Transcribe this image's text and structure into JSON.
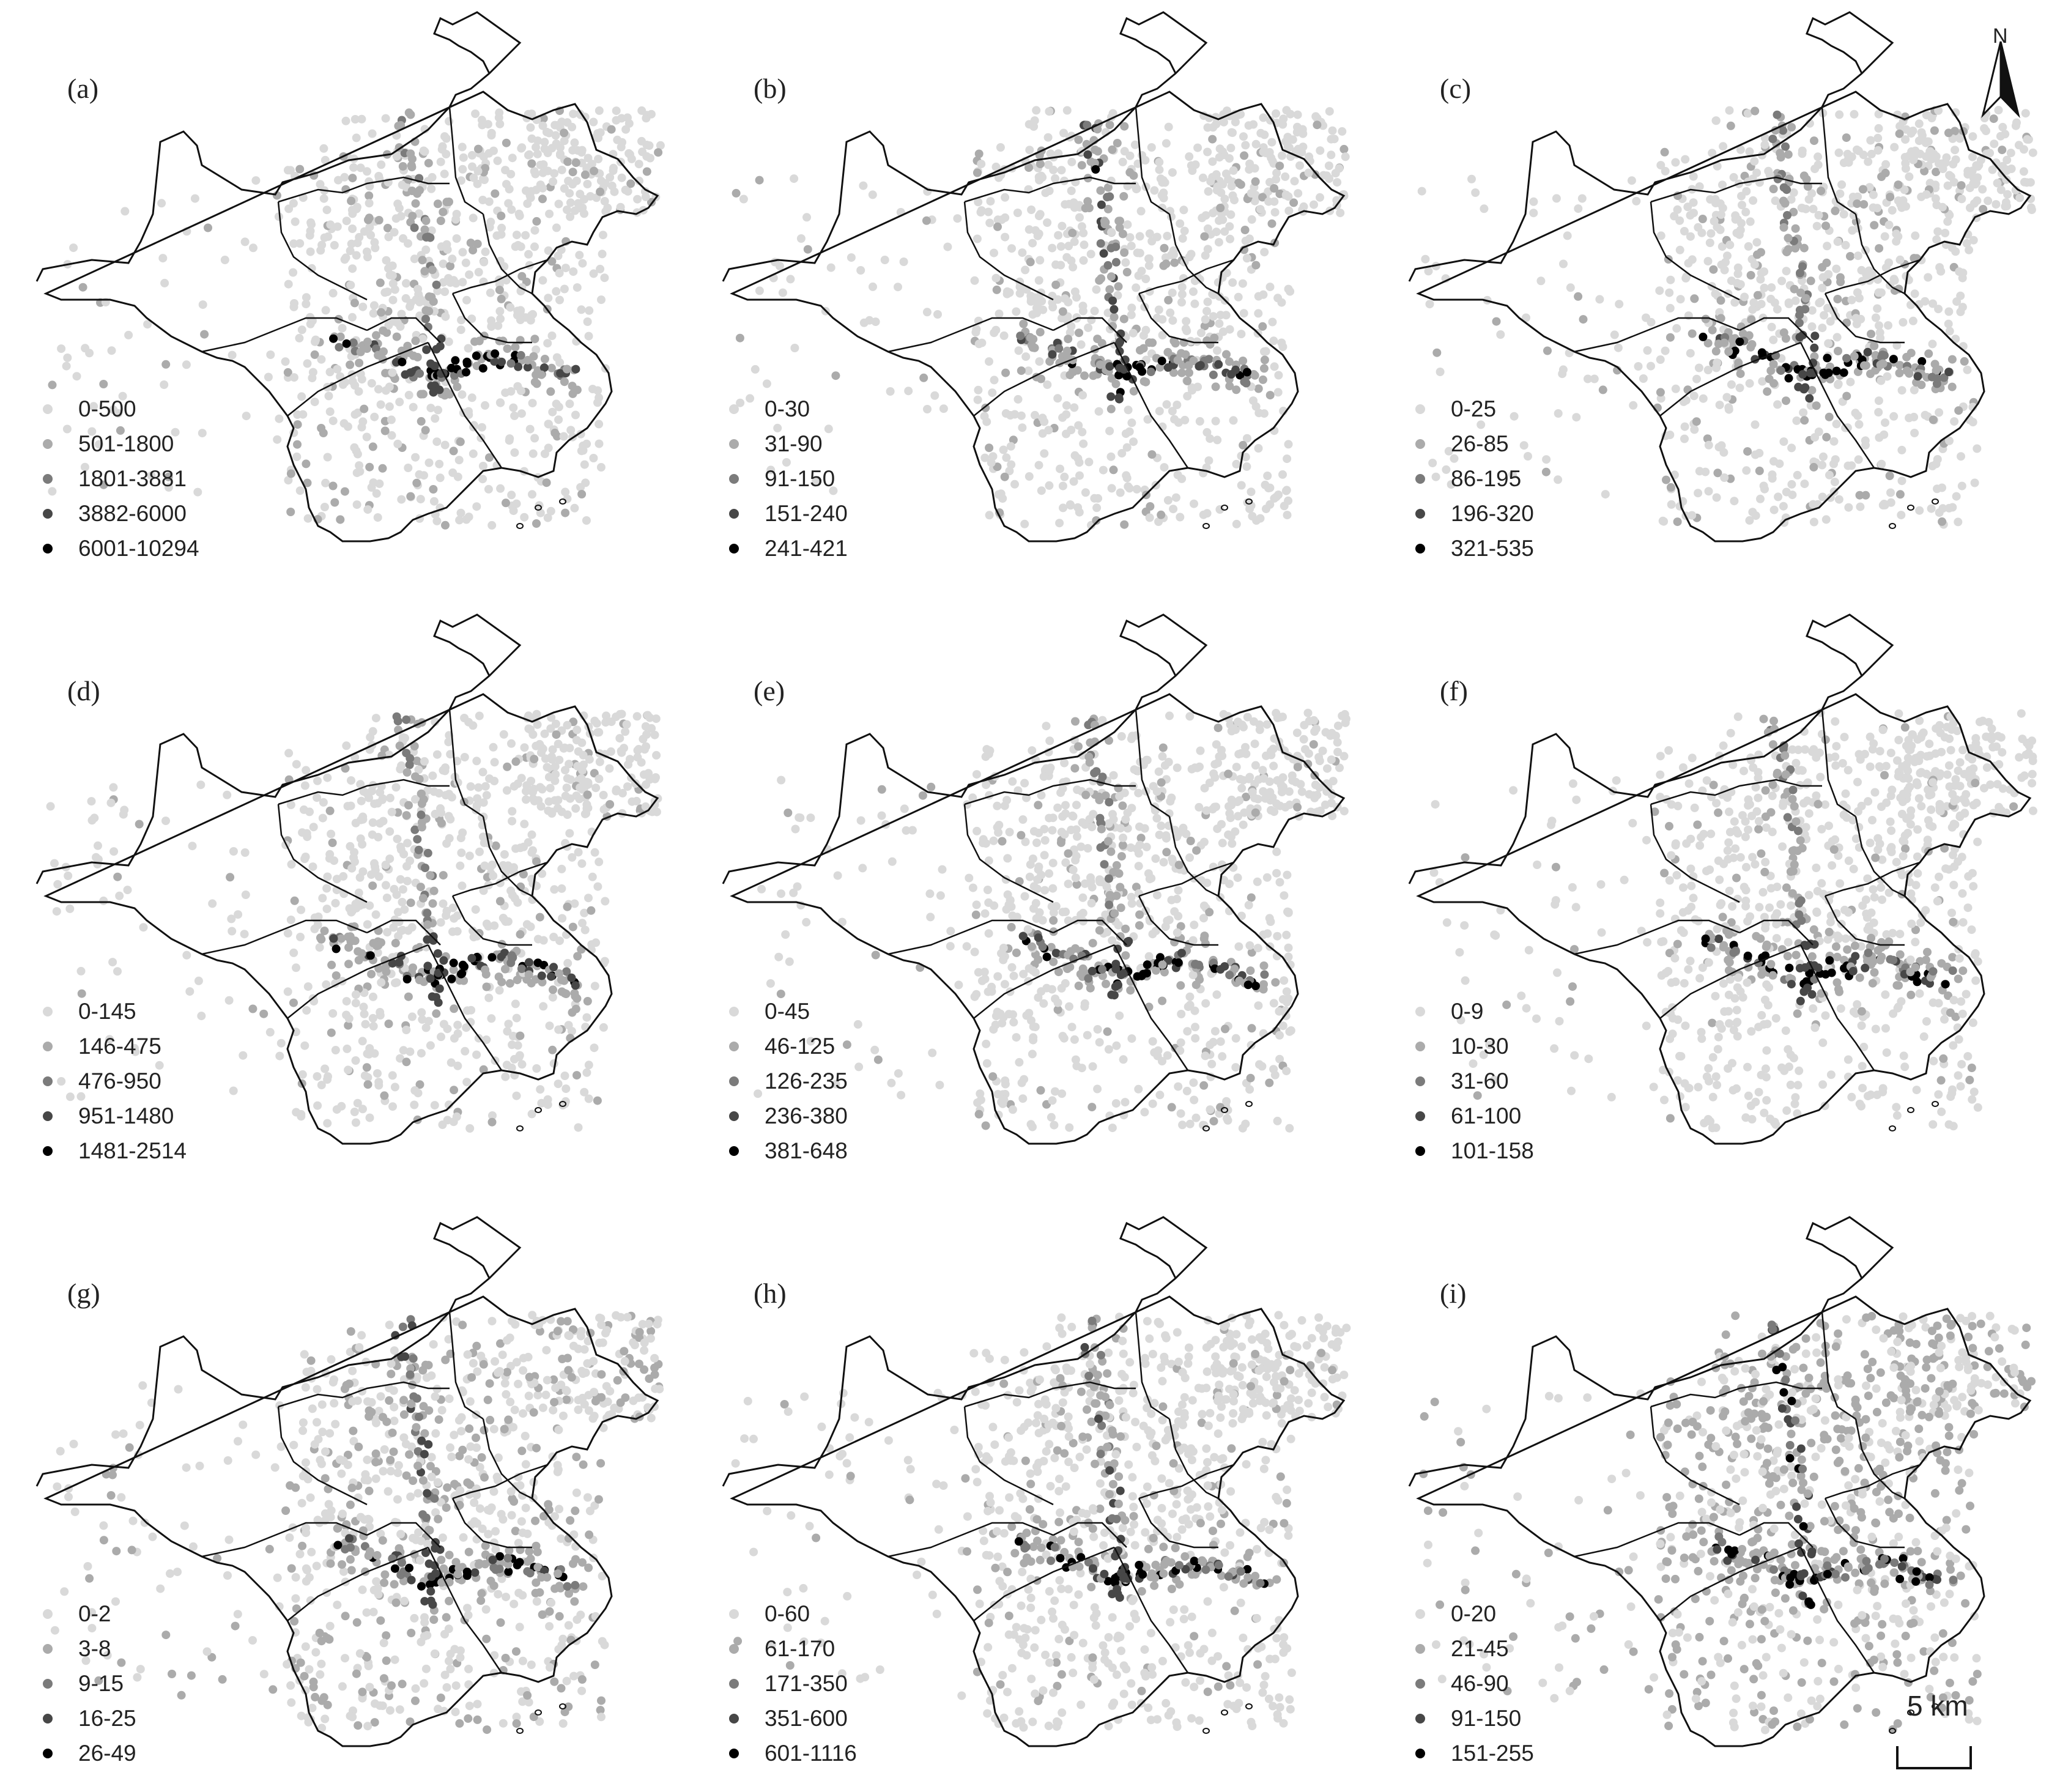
{
  "panels": [
    {
      "id": "a",
      "label": "(a)",
      "legend": [
        {
          "range": "0-500",
          "color": "#d9d9d9"
        },
        {
          "range": "501-1800",
          "color": "#ababab"
        },
        {
          "range": "1801-3881",
          "color": "#7b7b7b"
        },
        {
          "range": "3882-6000",
          "color": "#474747"
        },
        {
          "range": "6001-10294",
          "color": "#000000"
        }
      ]
    },
    {
      "id": "b",
      "label": "(b)",
      "legend": [
        {
          "range": "0-30",
          "color": "#d9d9d9"
        },
        {
          "range": "31-90",
          "color": "#ababab"
        },
        {
          "range": "91-150",
          "color": "#7b7b7b"
        },
        {
          "range": "151-240",
          "color": "#474747"
        },
        {
          "range": "241-421",
          "color": "#000000"
        }
      ]
    },
    {
      "id": "c",
      "label": "(c)",
      "legend": [
        {
          "range": "0-25",
          "color": "#d9d9d9"
        },
        {
          "range": "26-85",
          "color": "#ababab"
        },
        {
          "range": "86-195",
          "color": "#7b7b7b"
        },
        {
          "range": "196-320",
          "color": "#474747"
        },
        {
          "range": "321-535",
          "color": "#000000"
        }
      ]
    },
    {
      "id": "d",
      "label": "(d)",
      "legend": [
        {
          "range": "0-145",
          "color": "#d9d9d9"
        },
        {
          "range": "146-475",
          "color": "#ababab"
        },
        {
          "range": "476-950",
          "color": "#7b7b7b"
        },
        {
          "range": "951-1480",
          "color": "#474747"
        },
        {
          "range": "1481-2514",
          "color": "#000000"
        }
      ]
    },
    {
      "id": "e",
      "label": "(e)",
      "legend": [
        {
          "range": "0-45",
          "color": "#d9d9d9"
        },
        {
          "range": "46-125",
          "color": "#ababab"
        },
        {
          "range": "126-235",
          "color": "#7b7b7b"
        },
        {
          "range": "236-380",
          "color": "#474747"
        },
        {
          "range": "381-648",
          "color": "#000000"
        }
      ]
    },
    {
      "id": "f",
      "label": "(f)",
      "legend": [
        {
          "range": "0-9",
          "color": "#d9d9d9"
        },
        {
          "range": "10-30",
          "color": "#ababab"
        },
        {
          "range": "31-60",
          "color": "#7b7b7b"
        },
        {
          "range": "61-100",
          "color": "#474747"
        },
        {
          "range": "101-158",
          "color": "#000000"
        }
      ]
    },
    {
      "id": "g",
      "label": "(g)",
      "legend": [
        {
          "range": "0-2",
          "color": "#d9d9d9"
        },
        {
          "range": "3-8",
          "color": "#ababab"
        },
        {
          "range": "9-15",
          "color": "#7b7b7b"
        },
        {
          "range": "16-25",
          "color": "#474747"
        },
        {
          "range": "26-49",
          "color": "#000000"
        }
      ]
    },
    {
      "id": "h",
      "label": "(h)",
      "legend": [
        {
          "range": "0-60",
          "color": "#d9d9d9"
        },
        {
          "range": "61-170",
          "color": "#ababab"
        },
        {
          "range": "171-350",
          "color": "#7b7b7b"
        },
        {
          "range": "351-600",
          "color": "#474747"
        },
        {
          "range": "601-1116",
          "color": "#000000"
        }
      ]
    },
    {
      "id": "i",
      "label": "(i)",
      "legend": [
        {
          "range": "0-20",
          "color": "#d9d9d9"
        },
        {
          "range": "21-45",
          "color": "#ababab"
        },
        {
          "range": "46-90",
          "color": "#7b7b7b"
        },
        {
          "range": "91-150",
          "color": "#474747"
        },
        {
          "range": "151-255",
          "color": "#000000"
        }
      ]
    }
  ],
  "north_arrow": {
    "label": "N",
    "icon": "north-arrow-icon"
  },
  "scale_bar": {
    "label": "5 km"
  }
}
